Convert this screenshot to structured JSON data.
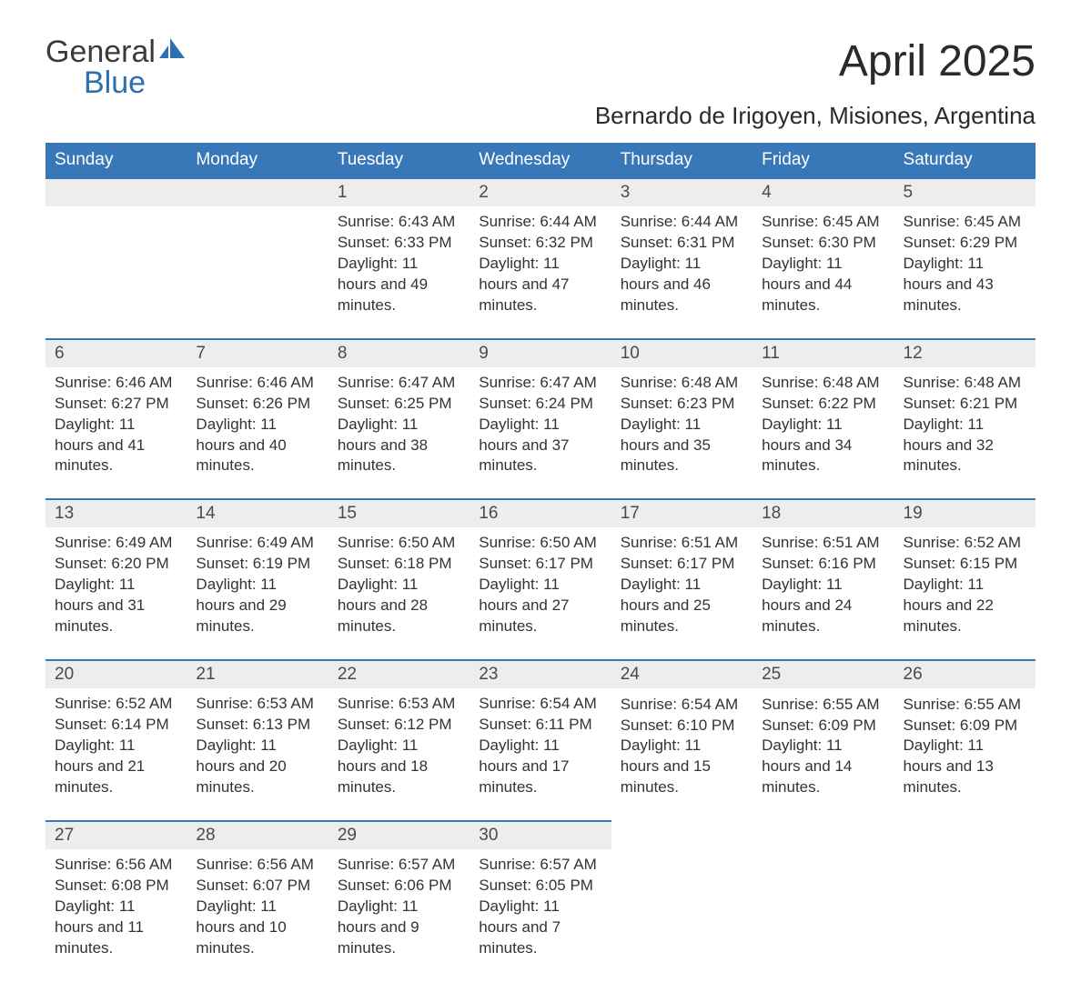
{
  "logo": {
    "word1": "General",
    "word2": "Blue",
    "sail_color": "#2e6fb0"
  },
  "title": "April 2025",
  "subtitle": "Bernardo de Irigoyen, Misiones, Argentina",
  "header_bg": "#3978b8",
  "header_fg": "#ffffff",
  "daynum_bg": "#ededed",
  "row_border": "#3978b8",
  "text_color": "#333333",
  "daysOfWeek": [
    "Sunday",
    "Monday",
    "Tuesday",
    "Wednesday",
    "Thursday",
    "Friday",
    "Saturday"
  ],
  "weeks": [
    [
      null,
      null,
      {
        "n": "1",
        "sr": "6:43 AM",
        "ss": "6:33 PM",
        "dl": "11 hours and 49 minutes."
      },
      {
        "n": "2",
        "sr": "6:44 AM",
        "ss": "6:32 PM",
        "dl": "11 hours and 47 minutes."
      },
      {
        "n": "3",
        "sr": "6:44 AM",
        "ss": "6:31 PM",
        "dl": "11 hours and 46 minutes."
      },
      {
        "n": "4",
        "sr": "6:45 AM",
        "ss": "6:30 PM",
        "dl": "11 hours and 44 minutes."
      },
      {
        "n": "5",
        "sr": "6:45 AM",
        "ss": "6:29 PM",
        "dl": "11 hours and 43 minutes."
      }
    ],
    [
      {
        "n": "6",
        "sr": "6:46 AM",
        "ss": "6:27 PM",
        "dl": "11 hours and 41 minutes."
      },
      {
        "n": "7",
        "sr": "6:46 AM",
        "ss": "6:26 PM",
        "dl": "11 hours and 40 minutes."
      },
      {
        "n": "8",
        "sr": "6:47 AM",
        "ss": "6:25 PM",
        "dl": "11 hours and 38 minutes."
      },
      {
        "n": "9",
        "sr": "6:47 AM",
        "ss": "6:24 PM",
        "dl": "11 hours and 37 minutes."
      },
      {
        "n": "10",
        "sr": "6:48 AM",
        "ss": "6:23 PM",
        "dl": "11 hours and 35 minutes."
      },
      {
        "n": "11",
        "sr": "6:48 AM",
        "ss": "6:22 PM",
        "dl": "11 hours and 34 minutes."
      },
      {
        "n": "12",
        "sr": "6:48 AM",
        "ss": "6:21 PM",
        "dl": "11 hours and 32 minutes."
      }
    ],
    [
      {
        "n": "13",
        "sr": "6:49 AM",
        "ss": "6:20 PM",
        "dl": "11 hours and 31 minutes."
      },
      {
        "n": "14",
        "sr": "6:49 AM",
        "ss": "6:19 PM",
        "dl": "11 hours and 29 minutes."
      },
      {
        "n": "15",
        "sr": "6:50 AM",
        "ss": "6:18 PM",
        "dl": "11 hours and 28 minutes."
      },
      {
        "n": "16",
        "sr": "6:50 AM",
        "ss": "6:17 PM",
        "dl": "11 hours and 27 minutes."
      },
      {
        "n": "17",
        "sr": "6:51 AM",
        "ss": "6:17 PM",
        "dl": "11 hours and 25 minutes."
      },
      {
        "n": "18",
        "sr": "6:51 AM",
        "ss": "6:16 PM",
        "dl": "11 hours and 24 minutes."
      },
      {
        "n": "19",
        "sr": "6:52 AM",
        "ss": "6:15 PM",
        "dl": "11 hours and 22 minutes."
      }
    ],
    [
      {
        "n": "20",
        "sr": "6:52 AM",
        "ss": "6:14 PM",
        "dl": "11 hours and 21 minutes."
      },
      {
        "n": "21",
        "sr": "6:53 AM",
        "ss": "6:13 PM",
        "dl": "11 hours and 20 minutes."
      },
      {
        "n": "22",
        "sr": "6:53 AM",
        "ss": "6:12 PM",
        "dl": "11 hours and 18 minutes."
      },
      {
        "n": "23",
        "sr": "6:54 AM",
        "ss": "6:11 PM",
        "dl": "11 hours and 17 minutes."
      },
      {
        "n": "24",
        "sr": "6:54 AM",
        "ss": "6:10 PM",
        "dl": "11 hours and 15 minutes."
      },
      {
        "n": "25",
        "sr": "6:55 AM",
        "ss": "6:09 PM",
        "dl": "11 hours and 14 minutes."
      },
      {
        "n": "26",
        "sr": "6:55 AM",
        "ss": "6:09 PM",
        "dl": "11 hours and 13 minutes."
      }
    ],
    [
      {
        "n": "27",
        "sr": "6:56 AM",
        "ss": "6:08 PM",
        "dl": "11 hours and 11 minutes."
      },
      {
        "n": "28",
        "sr": "6:56 AM",
        "ss": "6:07 PM",
        "dl": "11 hours and 10 minutes."
      },
      {
        "n": "29",
        "sr": "6:57 AM",
        "ss": "6:06 PM",
        "dl": "11 hours and 9 minutes."
      },
      {
        "n": "30",
        "sr": "6:57 AM",
        "ss": "6:05 PM",
        "dl": "11 hours and 7 minutes."
      },
      null,
      null,
      null
    ]
  ],
  "labels": {
    "sunrise": "Sunrise: ",
    "sunset": "Sunset: ",
    "daylight": "Daylight: "
  }
}
